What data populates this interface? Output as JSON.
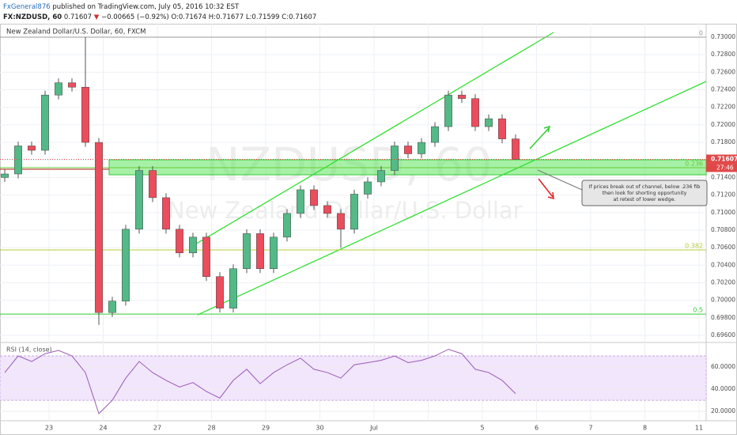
{
  "chart_data": {
    "type": "candlestick",
    "header": {
      "publisher": "FxGeneral876",
      "published_text": "published on TradingView.com, July 05, 2016 10:32 EST",
      "symbol": "FX:NZDUSD, 60",
      "last": 0.71607,
      "change": "−0.00665 (−0.92%)",
      "ohlc": [
        "O:0.71674",
        "H:0.71677",
        "L:0.71599",
        "C:0.71607"
      ]
    },
    "title": "New Zealand Dollar/U.S. Dollar, 60, FXCM",
    "watermark": [
      "NZDUSD, 60",
      "New Zealand Dollar/U.S. Dollar"
    ],
    "up_color": "#53b987",
    "down_color": "#eb4d5c",
    "open": [
      0.714,
      0.7144,
      0.7176,
      0.7171,
      0.7234,
      0.7248,
      0.7243,
      0.718,
      0.6986,
      0.6999,
      0.7081,
      0.7148,
      0.7117,
      0.7081,
      0.7054,
      0.7072,
      0.7027,
      0.6991,
      0.7036,
      0.7076,
      0.7036,
      0.7072,
      0.7099,
      0.7126,
      0.7108,
      0.7099,
      0.7081,
      0.7121,
      0.7135,
      0.7148,
      0.7176,
      0.7167,
      0.718,
      0.7198,
      0.7234,
      0.723,
      0.7198,
      0.7207,
      0.7184
    ],
    "high": [
      0.7149,
      0.7181,
      0.7181,
      0.7239,
      0.7253,
      0.7253,
      0.73,
      0.7185,
      0.7004,
      0.7086,
      0.7153,
      0.7153,
      0.7122,
      0.7086,
      0.7077,
      0.7077,
      0.7032,
      0.7041,
      0.7081,
      0.7081,
      0.7077,
      0.7104,
      0.7131,
      0.7131,
      0.7113,
      0.7104,
      0.7126,
      0.714,
      0.7153,
      0.7181,
      0.7181,
      0.7185,
      0.7203,
      0.7239,
      0.7239,
      0.7235,
      0.7212,
      0.7212,
      0.7189
    ],
    "low": [
      0.7135,
      0.7139,
      0.7166,
      0.7166,
      0.7229,
      0.7238,
      0.7175,
      0.6972,
      0.6981,
      0.6994,
      0.7076,
      0.7112,
      0.7076,
      0.7049,
      0.7049,
      0.7022,
      0.6986,
      0.6986,
      0.7031,
      0.7031,
      0.7031,
      0.7067,
      0.7094,
      0.7103,
      0.7094,
      0.706,
      0.7076,
      0.7116,
      0.713,
      0.7143,
      0.7162,
      0.7162,
      0.7175,
      0.7193,
      0.7225,
      0.7193,
      0.7193,
      0.7179,
      0.71599
    ],
    "close": [
      0.7144,
      0.7176,
      0.7171,
      0.7234,
      0.7248,
      0.7243,
      0.718,
      0.6986,
      0.6999,
      0.7081,
      0.7148,
      0.7117,
      0.7081,
      0.7054,
      0.7072,
      0.7027,
      0.6991,
      0.7036,
      0.7076,
      0.7036,
      0.7072,
      0.7099,
      0.7126,
      0.7108,
      0.7099,
      0.7081,
      0.7121,
      0.7135,
      0.7148,
      0.7176,
      0.7167,
      0.718,
      0.7198,
      0.7234,
      0.723,
      0.7198,
      0.7207,
      0.7184,
      0.71607
    ],
    "ylim": [
      0.69528,
      0.73063
    ],
    "yticks": [
      {
        "value": 0.696,
        "label": "0.69600"
      },
      {
        "value": 0.698,
        "label": "0.69800"
      },
      {
        "value": 0.7,
        "label": "0.70000"
      },
      {
        "value": 0.702,
        "label": "0.70200"
      },
      {
        "value": 0.704,
        "label": "0.70400"
      },
      {
        "value": 0.706,
        "label": "0.70600"
      },
      {
        "value": 0.708,
        "label": "0.70800"
      },
      {
        "value": 0.71,
        "label": "0.71000"
      },
      {
        "value": 0.712,
        "label": "0.71200"
      },
      {
        "value": 0.714,
        "label": "0.71400"
      },
      {
        "value": 0.716,
        "label": "0.71600"
      },
      {
        "value": 0.718,
        "label": "0.71800"
      },
      {
        "value": 0.72,
        "label": "0.72000"
      },
      {
        "value": 0.722,
        "label": "0.72200"
      },
      {
        "value": 0.724,
        "label": "0.72400"
      },
      {
        "value": 0.726,
        "label": "0.72600"
      },
      {
        "value": 0.728,
        "label": "0.72800"
      },
      {
        "value": 0.73,
        "label": "0.73000"
      }
    ],
    "grid": true,
    "categories": [
      "23",
      "24",
      "27",
      "28",
      "29",
      "30",
      "Jul",
      null,
      "5",
      "6",
      "7",
      "8",
      "11"
    ],
    "fib_levels": [
      {
        "label": "0",
        "value": 0.73
      },
      {
        "label": "0.236",
        "value": 0.71512
      },
      {
        "label": "0.382",
        "value": 0.70574
      },
      {
        "label": "0.5",
        "value": 0.69843
      }
    ],
    "current_price": 0.71607,
    "countdown": "27:46",
    "annotation": [
      "If prices break out of channel, below .236 fib",
      "then look for shorting opportunity",
      "at retest of lower wedge."
    ],
    "rsi": {
      "name": "RSI (14, close)",
      "color": "#9c5ab8",
      "values": [
        55,
        70,
        65,
        72,
        75,
        70,
        55,
        18,
        30,
        50,
        65,
        55,
        48,
        42,
        46,
        38,
        32,
        48,
        58,
        45,
        55,
        62,
        68,
        58,
        55,
        50,
        62,
        64,
        66,
        70,
        64,
        66,
        70,
        76,
        72,
        58,
        55,
        48,
        36
      ],
      "ylim": [
        13,
        80
      ],
      "yticks": [
        {
          "value": 60,
          "label": "60.0000"
        },
        {
          "value": 40,
          "label": "40.0000"
        },
        {
          "value": 20,
          "label": "20.0000"
        }
      ],
      "band": [
        30,
        70
      ]
    }
  }
}
